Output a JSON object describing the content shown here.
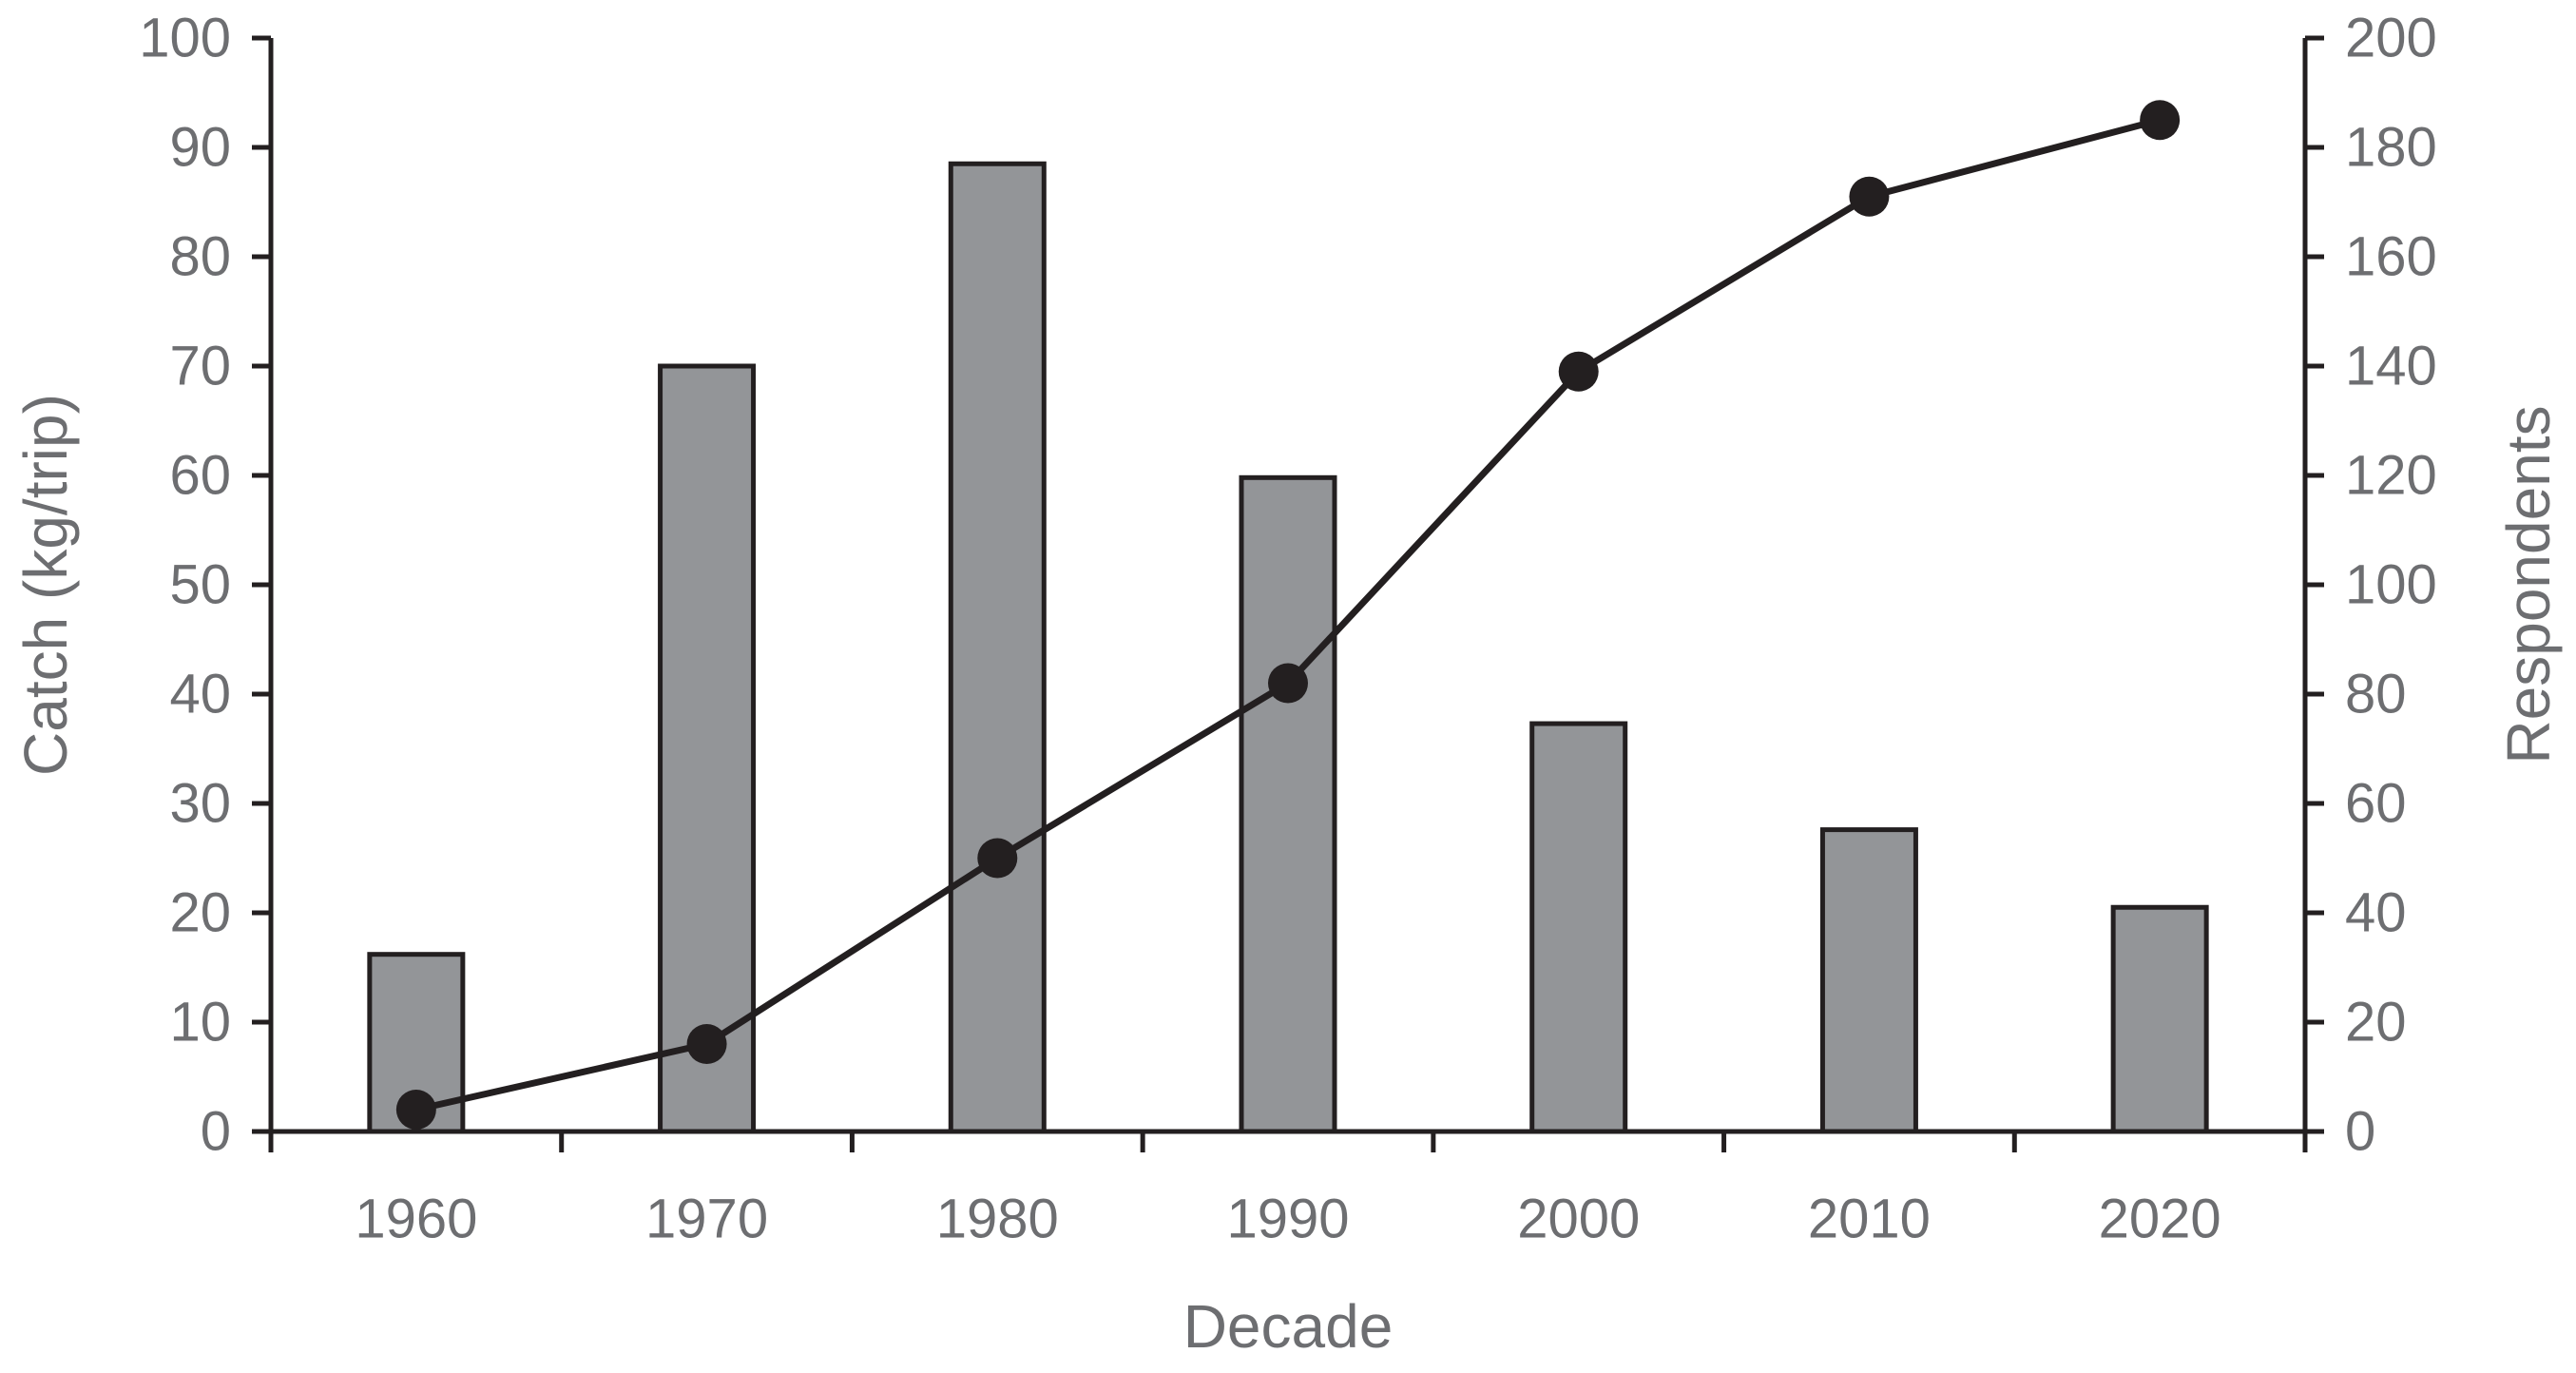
{
  "chart_data": {
    "type": "bar",
    "title": "",
    "xlabel": "Decade",
    "ylabel": "Catch (kg/trip)",
    "y2label": "Respondents",
    "categories": [
      "1960",
      "1970",
      "1980",
      "1990",
      "2000",
      "2010",
      "2020"
    ],
    "ylim": [
      0,
      100
    ],
    "y2lim": [
      0,
      200
    ],
    "yticks": [
      "0",
      "10",
      "20",
      "30",
      "40",
      "50",
      "60",
      "70",
      "80",
      "90",
      "100"
    ],
    "y2ticks": [
      "0",
      "20",
      "40",
      "60",
      "80",
      "100",
      "120",
      "140",
      "160",
      "180",
      "200"
    ],
    "grid": false,
    "legend": "none",
    "series": [
      {
        "type": "bar",
        "axis": "left",
        "values": [
          16.2,
          70,
          88.5,
          59.8,
          37.3,
          27.6,
          20.5
        ]
      },
      {
        "type": "line",
        "axis": "right",
        "values": [
          4,
          16,
          50,
          82,
          139,
          171,
          185
        ]
      }
    ],
    "colors": {
      "bar_fill": "#939598",
      "bar_stroke": "#231f20",
      "line": "#231f20",
      "marker": "#231f20",
      "axis": "#231f20",
      "text": "#6d6e71"
    }
  }
}
